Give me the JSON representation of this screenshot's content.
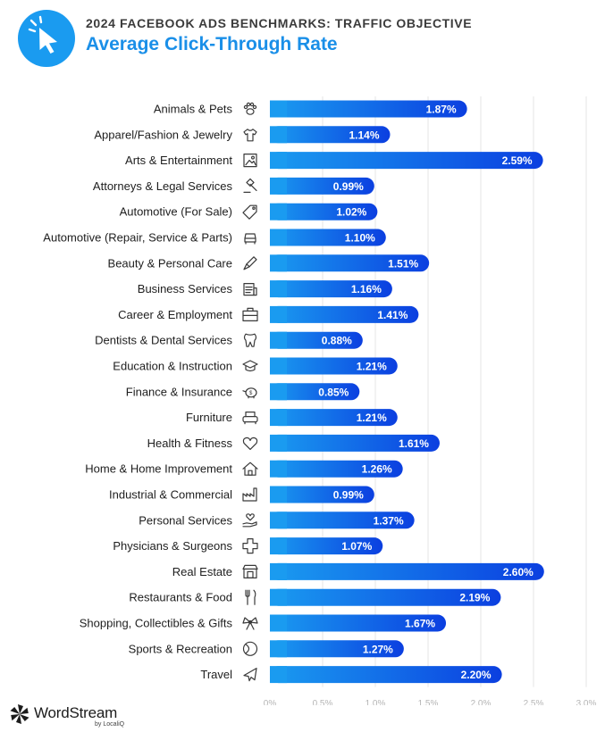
{
  "header": {
    "supertitle": "2024 FACEBOOK ADS BENCHMARKS: TRAFFIC OBJECTIVE",
    "title": "Average Click-Through Rate",
    "logo_icon": "cursor-click-icon"
  },
  "footer": {
    "brand": "WordStream",
    "sub": "by LocaliQ",
    "logo_icon": "pinwheel-logo-icon"
  },
  "colors": {
    "bar_start": "#1a9bf0",
    "bar_end": "#0b3fe0",
    "title": "#1a8fe8"
  },
  "chart_data": {
    "type": "bar",
    "orientation": "horizontal",
    "title": "Average Click-Through Rate",
    "xlabel": "",
    "ylabel": "",
    "xlim": [
      0,
      3.0
    ],
    "grid": true,
    "ticks": [
      "0%",
      "0.5%",
      "1.0%",
      "1.5%",
      "2.0%",
      "2.5%",
      "3.0%"
    ],
    "tick_values": [
      0,
      0.5,
      1.0,
      1.5,
      2.0,
      2.5,
      3.0
    ],
    "categories": [
      "Animals & Pets",
      "Apparel/Fashion & Jewelry",
      "Arts & Entertainment",
      "Attorneys & Legal Services",
      "Automotive (For Sale)",
      "Automotive (Repair, Service & Parts)",
      "Beauty & Personal Care",
      "Business Services",
      "Career & Employment",
      "Dentists & Dental Services",
      "Education & Instruction",
      "Finance & Insurance",
      "Furniture",
      "Health & Fitness",
      "Home & Home Improvement",
      "Industrial & Commercial",
      "Personal Services",
      "Physicians & Surgeons",
      "Real Estate",
      "Restaurants & Food",
      "Shopping, Collectibles & Gifts",
      "Sports & Recreation",
      "Travel"
    ],
    "values": [
      1.87,
      1.14,
      2.59,
      0.99,
      1.02,
      1.1,
      1.51,
      1.16,
      1.41,
      0.88,
      1.21,
      0.85,
      1.21,
      1.61,
      1.26,
      0.99,
      1.37,
      1.07,
      2.6,
      2.19,
      1.67,
      1.27,
      2.2
    ],
    "value_labels": [
      "1.87%",
      "1.14%",
      "2.59%",
      "0.99%",
      "1.02%",
      "1.10%",
      "1.51%",
      "1.16%",
      "1.41%",
      "0.88%",
      "1.21%",
      "0.85%",
      "1.21%",
      "1.61%",
      "1.26%",
      "0.99%",
      "1.37%",
      "1.07%",
      "2.60%",
      "2.19%",
      "1.67%",
      "1.27%",
      "2.20%"
    ],
    "icons": [
      "paw-icon",
      "tshirt-icon",
      "picture-frame-icon",
      "gavel-icon",
      "price-tag-icon",
      "car-icon",
      "brush-icon",
      "document-icon",
      "briefcase-icon",
      "tooth-icon",
      "graduation-cap-icon",
      "piggy-bank-icon",
      "armchair-icon",
      "heart-icon",
      "house-icon",
      "factory-icon",
      "hand-heart-icon",
      "medical-cross-icon",
      "storefront-icon",
      "utensils-icon",
      "gift-bow-icon",
      "ball-icon",
      "airplane-icon"
    ]
  }
}
